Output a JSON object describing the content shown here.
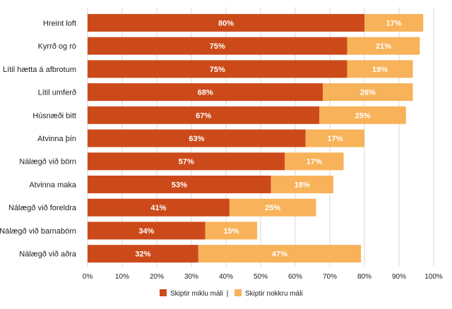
{
  "chart_data": {
    "type": "bar",
    "orientation": "horizontal",
    "stacked": true,
    "categories": [
      "Hreint loft",
      "Kyrrð og ró",
      "Lítil hætta á afbrotum",
      "Lítil umferð",
      "Húsnæði bitt",
      "Atvinna þín",
      "Nálægð við börn",
      "Atvinna maka",
      "Nálægð við foreldra",
      "Nálægð við barnabörn",
      "Nálægð við aðra"
    ],
    "series": [
      {
        "name": "Skiptir miklu máli",
        "values": [
          80,
          75,
          75,
          68,
          67,
          63,
          57,
          53,
          41,
          34,
          32
        ],
        "color": "#cc4a1a"
      },
      {
        "name": "Skiptir nokkru máli",
        "values": [
          17,
          21,
          19,
          26,
          25,
          17,
          17,
          18,
          25,
          15,
          47
        ],
        "color": "#f8b259"
      }
    ],
    "value_suffix": "%",
    "xlim": [
      0,
      100
    ],
    "x_ticks": [
      "0%",
      "10%",
      "20%",
      "30%",
      "40%",
      "50%",
      "60%",
      "70%",
      "80%",
      "90%",
      "100%"
    ],
    "grid": "vertical",
    "legend": {
      "position": "bottom-center",
      "separator": "|"
    }
  }
}
